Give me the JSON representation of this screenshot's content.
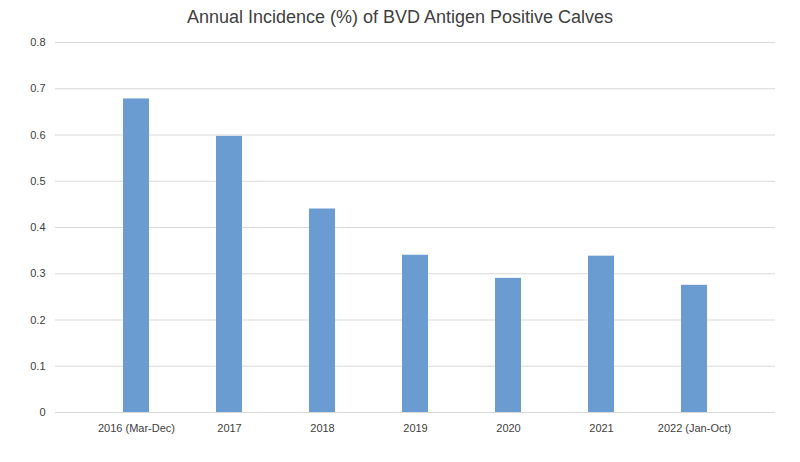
{
  "chart_data": {
    "type": "bar",
    "title": "Annual Incidence (%) of BVD Antigen Positive Calves",
    "categories": [
      "2016 (Mar-Dec)",
      "2017",
      "2018",
      "2019",
      "2020",
      "2021",
      "2022 (Jan-Oct)"
    ],
    "values": [
      0.678,
      0.597,
      0.44,
      0.34,
      0.29,
      0.338,
      0.275
    ],
    "color": "#6a9bd1",
    "ylim": [
      0,
      0.8
    ],
    "yticks": [
      0,
      0.1,
      0.2,
      0.3,
      0.4,
      0.5,
      0.6,
      0.7,
      0.8
    ],
    "grid": true
  }
}
